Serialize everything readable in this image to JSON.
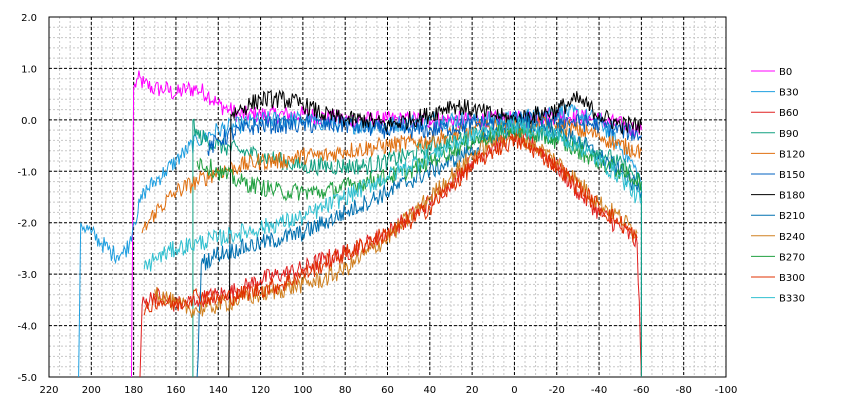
{
  "chart_data": {
    "type": "line",
    "title": "",
    "xlabel": "",
    "ylabel": "",
    "xlim": [
      220,
      -100
    ],
    "ylim": [
      -5.0,
      2.0
    ],
    "x_ticks": [
      "220",
      "200",
      "180",
      "160",
      "140",
      "120",
      "100",
      "80",
      "60",
      "40",
      "20",
      "0",
      "-20",
      "-40",
      "-60",
      "-80",
      "-100"
    ],
    "y_ticks": [
      "2.0",
      "1.0",
      "0.0",
      "-1.0",
      "-2.0",
      "-3.0",
      "-4.0",
      "-5.0"
    ],
    "grid": true,
    "legend_position": "right",
    "series": [
      {
        "name": "B0",
        "color": "#ff00ff",
        "points": [
          [
            181,
            -5.0
          ],
          [
            180,
            0.6
          ],
          [
            178,
            0.8
          ],
          [
            175,
            0.7
          ],
          [
            170,
            0.6
          ],
          [
            165,
            0.6
          ],
          [
            160,
            0.5
          ],
          [
            155,
            0.6
          ],
          [
            150,
            0.6
          ],
          [
            145,
            0.5
          ],
          [
            140,
            0.3
          ],
          [
            135,
            0.2
          ],
          [
            130,
            0.1
          ],
          [
            120,
            0.1
          ],
          [
            100,
            0.1
          ],
          [
            80,
            0.0
          ],
          [
            60,
            0.0
          ],
          [
            40,
            0.0
          ],
          [
            20,
            0.0
          ],
          [
            0,
            0.0
          ],
          [
            -20,
            0.1
          ],
          [
            -40,
            0.0
          ],
          [
            -60,
            -0.2
          ]
        ]
      },
      {
        "name": "B30",
        "color": "#1f9fe0",
        "points": [
          [
            206,
            -5.0
          ],
          [
            205,
            -2.0
          ],
          [
            200,
            -2.2
          ],
          [
            195,
            -2.4
          ],
          [
            190,
            -2.6
          ],
          [
            185,
            -2.6
          ],
          [
            182,
            -2.4
          ],
          [
            180,
            -2.0
          ],
          [
            175,
            -1.4
          ],
          [
            170,
            -1.2
          ],
          [
            165,
            -1.0
          ],
          [
            160,
            -0.8
          ],
          [
            155,
            -0.6
          ],
          [
            150,
            -0.4
          ],
          [
            140,
            -0.2
          ],
          [
            130,
            -0.1
          ],
          [
            120,
            0.0
          ],
          [
            100,
            0.0
          ],
          [
            80,
            -0.1
          ],
          [
            60,
            -0.1
          ],
          [
            40,
            0.0
          ],
          [
            20,
            0.0
          ],
          [
            0,
            0.0
          ],
          [
            -20,
            0.2
          ],
          [
            -40,
            0.0
          ],
          [
            -55,
            -0.8
          ],
          [
            -60,
            -1.2
          ],
          [
            -60,
            -5.0
          ]
        ]
      },
      {
        "name": "B60",
        "color": "#e02020",
        "points": [
          [
            177,
            -5.0
          ],
          [
            176,
            -3.6
          ],
          [
            170,
            -3.4
          ],
          [
            160,
            -3.6
          ],
          [
            150,
            -3.5
          ],
          [
            140,
            -3.4
          ],
          [
            130,
            -3.3
          ],
          [
            120,
            -3.1
          ],
          [
            110,
            -3.0
          ],
          [
            100,
            -2.9
          ],
          [
            90,
            -2.7
          ],
          [
            80,
            -2.6
          ],
          [
            70,
            -2.4
          ],
          [
            60,
            -2.2
          ],
          [
            50,
            -1.9
          ],
          [
            40,
            -1.6
          ],
          [
            30,
            -1.2
          ],
          [
            20,
            -0.8
          ],
          [
            10,
            -0.5
          ],
          [
            0,
            -0.3
          ],
          [
            -10,
            -0.5
          ],
          [
            -20,
            -0.9
          ],
          [
            -30,
            -1.4
          ],
          [
            -40,
            -1.8
          ],
          [
            -50,
            -2.1
          ],
          [
            -58,
            -2.4
          ],
          [
            -60,
            -5.0
          ]
        ]
      },
      {
        "name": "B90",
        "color": "#10a080",
        "points": [
          [
            152,
            -5.0
          ],
          [
            152,
            0.0
          ],
          [
            150,
            -0.3
          ],
          [
            140,
            -0.5
          ],
          [
            130,
            -0.6
          ],
          [
            120,
            -0.7
          ],
          [
            110,
            -0.8
          ],
          [
            100,
            -0.9
          ],
          [
            90,
            -0.9
          ],
          [
            80,
            -0.9
          ],
          [
            70,
            -0.9
          ],
          [
            60,
            -0.8
          ],
          [
            50,
            -0.7
          ],
          [
            40,
            -0.5
          ],
          [
            30,
            -0.4
          ],
          [
            20,
            -0.3
          ],
          [
            0,
            -0.2
          ],
          [
            -20,
            -0.3
          ],
          [
            -40,
            -0.6
          ],
          [
            -55,
            -1.0
          ],
          [
            -60,
            -1.3
          ],
          [
            -60,
            -5.0
          ]
        ]
      },
      {
        "name": "B120",
        "color": "#e07010",
        "points": [
          [
            176,
            -2.2
          ],
          [
            170,
            -1.8
          ],
          [
            160,
            -1.4
          ],
          [
            150,
            -1.2
          ],
          [
            140,
            -1.0
          ],
          [
            130,
            -0.9
          ],
          [
            120,
            -0.8
          ],
          [
            110,
            -0.8
          ],
          [
            100,
            -0.7
          ],
          [
            90,
            -0.7
          ],
          [
            80,
            -0.6
          ],
          [
            60,
            -0.5
          ],
          [
            40,
            -0.4
          ],
          [
            20,
            -0.2
          ],
          [
            0,
            -0.1
          ],
          [
            -20,
            -0.1
          ],
          [
            -40,
            -0.3
          ],
          [
            -50,
            -0.5
          ],
          [
            -60,
            -0.6
          ]
        ]
      },
      {
        "name": "B150",
        "color": "#0060c0",
        "points": [
          [
            145,
            -0.6
          ],
          [
            140,
            -0.4
          ],
          [
            130,
            -0.2
          ],
          [
            120,
            -0.1
          ],
          [
            110,
            -0.1
          ],
          [
            100,
            -0.1
          ],
          [
            80,
            -0.1
          ],
          [
            60,
            -0.2
          ],
          [
            40,
            -0.2
          ],
          [
            20,
            -0.1
          ],
          [
            0,
            0.0
          ],
          [
            -20,
            0.0
          ],
          [
            -40,
            -0.1
          ],
          [
            -60,
            -0.3
          ]
        ]
      },
      {
        "name": "B180",
        "color": "#000000",
        "points": [
          [
            135,
            -5.0
          ],
          [
            134,
            0.1
          ],
          [
            130,
            0.2
          ],
          [
            125,
            0.3
          ],
          [
            120,
            0.4
          ],
          [
            110,
            0.4
          ],
          [
            100,
            0.3
          ],
          [
            90,
            0.1
          ],
          [
            80,
            0.0
          ],
          [
            70,
            0.0
          ],
          [
            60,
            -0.1
          ],
          [
            50,
            0.0
          ],
          [
            40,
            0.1
          ],
          [
            30,
            0.3
          ],
          [
            20,
            0.2
          ],
          [
            10,
            0.1
          ],
          [
            0,
            0.0
          ],
          [
            -20,
            0.2
          ],
          [
            -30,
            0.4
          ],
          [
            -40,
            0.1
          ],
          [
            -50,
            -0.1
          ],
          [
            -60,
            -0.1
          ]
        ]
      },
      {
        "name": "B210",
        "color": "#0070b0",
        "points": [
          [
            150,
            -5.0
          ],
          [
            148,
            -2.8
          ],
          [
            140,
            -2.6
          ],
          [
            130,
            -2.5
          ],
          [
            120,
            -2.4
          ],
          [
            110,
            -2.3
          ],
          [
            100,
            -2.2
          ],
          [
            90,
            -2.0
          ],
          [
            80,
            -1.8
          ],
          [
            70,
            -1.6
          ],
          [
            60,
            -1.4
          ],
          [
            50,
            -1.2
          ],
          [
            40,
            -1.0
          ],
          [
            30,
            -0.8
          ],
          [
            20,
            -0.6
          ],
          [
            10,
            -0.3
          ],
          [
            0,
            -0.1
          ],
          [
            -10,
            -0.1
          ],
          [
            -20,
            -0.2
          ],
          [
            -30,
            -0.4
          ],
          [
            -40,
            -0.7
          ],
          [
            -50,
            -1.0
          ],
          [
            -60,
            -1.4
          ]
        ]
      },
      {
        "name": "B240",
        "color": "#d08020",
        "points": [
          [
            170,
            -3.3
          ],
          [
            160,
            -3.6
          ],
          [
            150,
            -3.7
          ],
          [
            140,
            -3.6
          ],
          [
            130,
            -3.5
          ],
          [
            120,
            -3.4
          ],
          [
            110,
            -3.3
          ],
          [
            100,
            -3.2
          ],
          [
            90,
            -3.1
          ],
          [
            80,
            -2.9
          ],
          [
            70,
            -2.6
          ],
          [
            60,
            -2.3
          ],
          [
            50,
            -1.9
          ],
          [
            40,
            -1.5
          ],
          [
            30,
            -1.1
          ],
          [
            20,
            -0.7
          ],
          [
            10,
            -0.4
          ],
          [
            0,
            -0.3
          ],
          [
            -10,
            -0.5
          ],
          [
            -20,
            -0.8
          ],
          [
            -30,
            -1.2
          ],
          [
            -40,
            -1.6
          ],
          [
            -50,
            -1.9
          ],
          [
            -58,
            -2.2
          ]
        ]
      },
      {
        "name": "B270",
        "color": "#20a040",
        "points": [
          [
            150,
            -0.8
          ],
          [
            140,
            -1.0
          ],
          [
            130,
            -1.2
          ],
          [
            120,
            -1.3
          ],
          [
            110,
            -1.4
          ],
          [
            100,
            -1.4
          ],
          [
            90,
            -1.4
          ],
          [
            80,
            -1.3
          ],
          [
            70,
            -1.2
          ],
          [
            60,
            -1.1
          ],
          [
            50,
            -1.0
          ],
          [
            40,
            -0.8
          ],
          [
            30,
            -0.6
          ],
          [
            20,
            -0.4
          ],
          [
            10,
            -0.3
          ],
          [
            0,
            -0.2
          ],
          [
            -10,
            -0.3
          ],
          [
            -20,
            -0.4
          ],
          [
            -30,
            -0.6
          ],
          [
            -40,
            -0.8
          ],
          [
            -50,
            -1.0
          ],
          [
            -60,
            -1.2
          ]
        ]
      },
      {
        "name": "B300",
        "color": "#e03000",
        "points": [
          [
            175,
            -3.8
          ],
          [
            170,
            -3.5
          ],
          [
            160,
            -3.6
          ],
          [
            150,
            -3.4
          ],
          [
            140,
            -3.5
          ],
          [
            130,
            -3.4
          ],
          [
            120,
            -3.3
          ],
          [
            110,
            -3.2
          ],
          [
            100,
            -3.0
          ],
          [
            90,
            -2.8
          ],
          [
            80,
            -2.6
          ],
          [
            70,
            -2.4
          ],
          [
            60,
            -2.2
          ],
          [
            50,
            -2.0
          ],
          [
            40,
            -1.7
          ],
          [
            30,
            -1.3
          ],
          [
            20,
            -0.9
          ],
          [
            10,
            -0.6
          ],
          [
            0,
            -0.4
          ],
          [
            -10,
            -0.6
          ],
          [
            -20,
            -0.9
          ],
          [
            -30,
            -1.3
          ],
          [
            -40,
            -1.7
          ],
          [
            -50,
            -2.0
          ],
          [
            -58,
            -2.3
          ]
        ]
      },
      {
        "name": "B330",
        "color": "#30c0d0",
        "points": [
          [
            175,
            -2.9
          ],
          [
            170,
            -2.7
          ],
          [
            160,
            -2.5
          ],
          [
            150,
            -2.4
          ],
          [
            140,
            -2.3
          ],
          [
            130,
            -2.2
          ],
          [
            120,
            -2.1
          ],
          [
            110,
            -2.0
          ],
          [
            100,
            -1.9
          ],
          [
            90,
            -1.7
          ],
          [
            80,
            -1.5
          ],
          [
            70,
            -1.3
          ],
          [
            60,
            -1.1
          ],
          [
            50,
            -0.9
          ],
          [
            40,
            -0.7
          ],
          [
            30,
            -0.5
          ],
          [
            20,
            -0.3
          ],
          [
            10,
            -0.2
          ],
          [
            0,
            -0.1
          ],
          [
            -10,
            -0.2
          ],
          [
            -20,
            -0.3
          ],
          [
            -30,
            -0.5
          ],
          [
            -40,
            -0.8
          ],
          [
            -50,
            -1.1
          ],
          [
            -60,
            -1.6
          ]
        ]
      }
    ]
  }
}
